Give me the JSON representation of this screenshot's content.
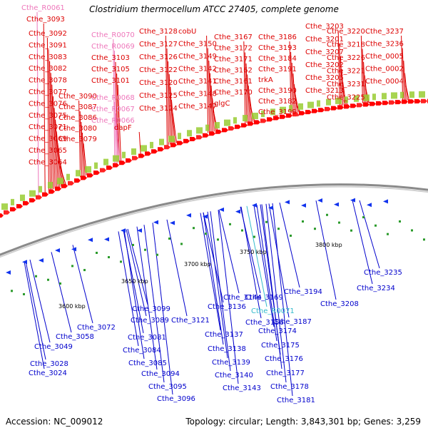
{
  "title": "Clostridium thermocellum ATCC 27405, complete genome",
  "footer": {
    "accession": "Accession: NC_009012",
    "summary": "Topology: circular; Length: 3,843,301 bp; Genes: 3,259"
  },
  "colors": {
    "forward_label": "#dd0000",
    "reverse_label": "#0000cc",
    "rna_label_fwd": "#ee77bb",
    "rna_label_rev": "#33bbcc",
    "forward_arrow": "#ff0000",
    "reverse_arrow": "#1133ee",
    "backbone": "#888888"
  },
  "chart_data": {
    "type": "circular_genome_map",
    "scale_ticks": [
      "3600 kbp",
      "3650 kbp",
      "3700 kbp",
      "3750 kbp",
      "3800 kbp"
    ],
    "forward_labels": [
      {
        "text": "Cthe_R0061",
        "kind": "rna"
      },
      {
        "text": "Cthe_3093"
      },
      {
        "text": "Cthe_3092"
      },
      {
        "text": "Cthe_3091"
      },
      {
        "text": "Cthe_3083"
      },
      {
        "text": "Cthe_3082"
      },
      {
        "text": "Cthe_3078"
      },
      {
        "text": "Cthe_3077"
      },
      {
        "text": "Cthe_3076"
      },
      {
        "text": "Cthe_3075"
      },
      {
        "text": "Cthe_3071"
      },
      {
        "text": "Cthe_3069"
      },
      {
        "text": "Cthe_3065"
      },
      {
        "text": "Cthe_3064"
      },
      {
        "text": "Cthe_3090"
      },
      {
        "text": "Cthe_3087"
      },
      {
        "text": "Cthe_3086"
      },
      {
        "text": "Cthe_3080"
      },
      {
        "text": "Cthe_3079"
      },
      {
        "text": "Cthe_R0070",
        "kind": "rna"
      },
      {
        "text": "Cthe_R0069",
        "kind": "rna"
      },
      {
        "text": "Cthe_3103"
      },
      {
        "text": "Cthe_3105"
      },
      {
        "text": "Cthe_3101"
      },
      {
        "text": "Cthe_R0068",
        "kind": "rna"
      },
      {
        "text": "Cthe_R0067",
        "kind": "rna"
      },
      {
        "text": "Cthe_R0066",
        "kind": "rna"
      },
      {
        "text": "dapF"
      },
      {
        "text": "Cthe_3128"
      },
      {
        "text": "Cthe_3127"
      },
      {
        "text": "Cthe_3126"
      },
      {
        "text": "Cthe_3122"
      },
      {
        "text": "Cthe_3120"
      },
      {
        "text": "Cthe_3125"
      },
      {
        "text": "Cthe_3124"
      },
      {
        "text": "cobU"
      },
      {
        "text": "Cthe_3150"
      },
      {
        "text": "Cthe_3149"
      },
      {
        "text": "Cthe_3142"
      },
      {
        "text": "Cthe_3141"
      },
      {
        "text": "Cthe_3148"
      },
      {
        "text": "Cthe_3147"
      },
      {
        "text": "Cthe_3167"
      },
      {
        "text": "Cthe_3172"
      },
      {
        "text": "Cthe_3171"
      },
      {
        "text": "Cthe_3162"
      },
      {
        "text": "Cthe_3161"
      },
      {
        "text": "Cthe_3170"
      },
      {
        "text": "glgC"
      },
      {
        "text": "Cthe_3186"
      },
      {
        "text": "Cthe_3193"
      },
      {
        "text": "Cthe_3184"
      },
      {
        "text": "Cthe_3191"
      },
      {
        "text": "trkA"
      },
      {
        "text": "Cthe_3190"
      },
      {
        "text": "Cthe_3182"
      },
      {
        "text": "Cthe_3199"
      },
      {
        "text": "Cthe_3203"
      },
      {
        "text": "Cthe_3201"
      },
      {
        "text": "Cthe_3207"
      },
      {
        "text": "Cthe_3202"
      },
      {
        "text": "Cthe_3205"
      },
      {
        "text": "Cthe_3213"
      },
      {
        "text": "Cthe_3220"
      },
      {
        "text": "Cthe_3218"
      },
      {
        "text": "Cthe_3226"
      },
      {
        "text": "Cthe_3221"
      },
      {
        "text": "Cthe_3231"
      },
      {
        "text": "Cthe_3225"
      },
      {
        "text": "Cthe_3237"
      },
      {
        "text": "Cthe_3236"
      },
      {
        "text": "Cthe_0005"
      },
      {
        "text": "Cthe_0002"
      },
      {
        "text": "Cthe_0004"
      }
    ],
    "reverse_labels": [
      {
        "text": "Cthe_3072"
      },
      {
        "text": "Cthe_3058"
      },
      {
        "text": "Cthe_3049"
      },
      {
        "text": "Cthe_3028"
      },
      {
        "text": "Cthe_3024"
      },
      {
        "text": "Cthe_3099"
      },
      {
        "text": "Cthe_3089"
      },
      {
        "text": "Cthe_3081"
      },
      {
        "text": "Cthe_3084"
      },
      {
        "text": "Cthe_3085"
      },
      {
        "text": "Cthe_3094"
      },
      {
        "text": "Cthe_3095"
      },
      {
        "text": "Cthe_3096"
      },
      {
        "text": "Cthe_3121"
      },
      {
        "text": "Cthe_3144"
      },
      {
        "text": "Cthe_3136"
      },
      {
        "text": "Cthe_3137"
      },
      {
        "text": "Cthe_3138"
      },
      {
        "text": "Cthe_3139"
      },
      {
        "text": "Cthe_3140"
      },
      {
        "text": "Cthe_3143"
      },
      {
        "text": "Cthe_3156"
      },
      {
        "text": "Cthe_3169"
      },
      {
        "text": "Cthe_R0071",
        "kind": "rna"
      },
      {
        "text": "Cthe_3174"
      },
      {
        "text": "Cthe_3175"
      },
      {
        "text": "Cthe_3176"
      },
      {
        "text": "Cthe_3177"
      },
      {
        "text": "Cthe_3178"
      },
      {
        "text": "Cthe_3181"
      },
      {
        "text": "Cthe_3187"
      },
      {
        "text": "Cthe_3194"
      },
      {
        "text": "Cthe_3208"
      },
      {
        "text": "Cthe_3235"
      },
      {
        "text": "Cthe_3234"
      }
    ]
  }
}
